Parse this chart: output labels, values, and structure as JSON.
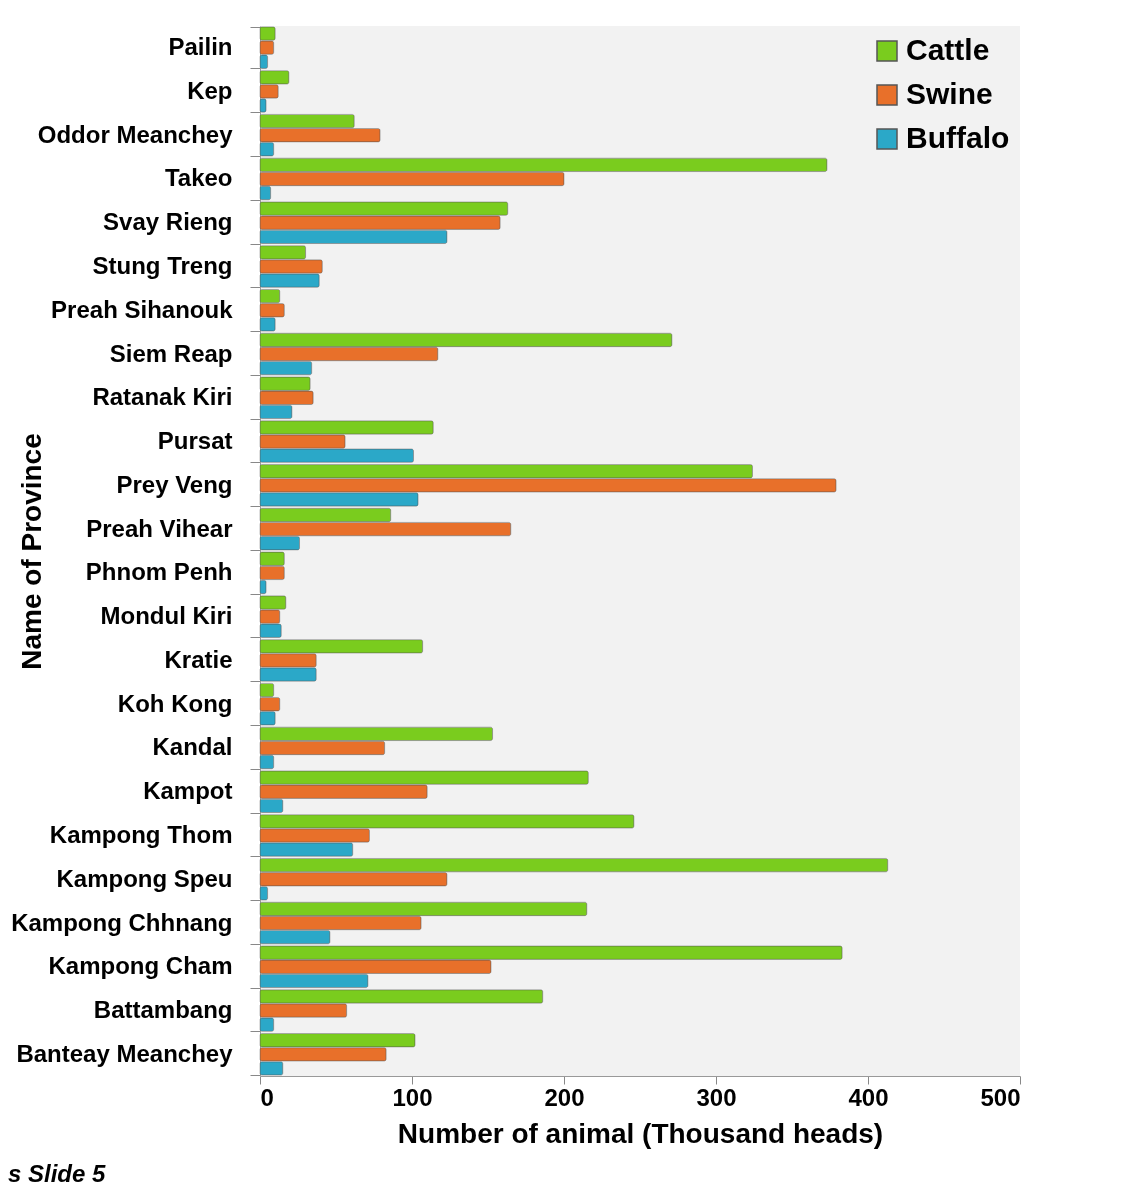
{
  "chart_data": {
    "type": "bar",
    "orientation": "horizontal",
    "xlabel": "Number of animal (Thousand heads)",
    "ylabel": "Name of Province",
    "categories": [
      "Pailin",
      "Kep",
      "Oddor Meanchey",
      "Takeo",
      "Svay Rieng",
      "Stung Treng",
      "Preah Sihanouk",
      "Siem Reap",
      "Ratanak Kiri",
      "Pursat",
      "Prey Veng",
      "Preah Vihear",
      "Phnom Penh",
      "Mondul Kiri",
      "Kratie",
      "Koh Kong",
      "Kandal",
      "Kampot",
      "Kampong Thom",
      "Kampong Speu",
      "Kampong Chhnang",
      "Kampong Cham",
      "Battambang",
      "Banteay Meanchey"
    ],
    "series": [
      {
        "name": "Cattle",
        "color": "#7acc1e",
        "values": [
          10,
          19,
          62,
          373,
          163,
          30,
          13,
          271,
          33,
          114,
          324,
          86,
          16,
          17,
          107,
          9,
          153,
          216,
          246,
          413,
          215,
          383,
          186,
          102
        ]
      },
      {
        "name": "Swine",
        "color": "#e8702a",
        "values": [
          9,
          12,
          79,
          200,
          158,
          41,
          16,
          117,
          35,
          56,
          379,
          165,
          16,
          13,
          37,
          13,
          82,
          110,
          72,
          123,
          106,
          152,
          57,
          83
        ]
      },
      {
        "name": "Buffalo",
        "color": "#2ba8c8",
        "values": [
          5,
          4,
          9,
          7,
          123,
          39,
          10,
          34,
          21,
          101,
          104,
          26,
          4,
          14,
          37,
          10,
          9,
          15,
          61,
          5,
          46,
          71,
          9,
          15
        ]
      }
    ],
    "xlim": [
      0,
      500
    ],
    "xticks": [
      0,
      100,
      200,
      300,
      400,
      500
    ],
    "legend": "top right",
    "annotations": [
      "s Slide 5"
    ]
  }
}
